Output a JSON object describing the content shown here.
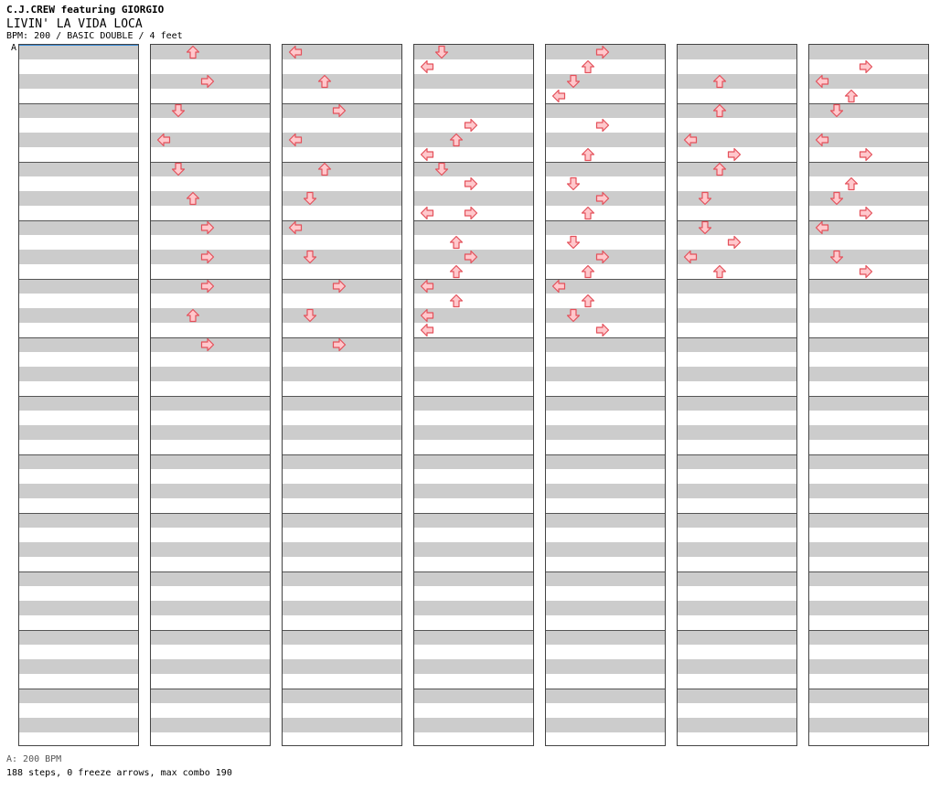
{
  "header": {
    "artist": "C.J.CREW featuring GIORGIO",
    "title": "LIVIN' LA VIDA LOCA",
    "info": "BPM: 200 / BASIC DOUBLE / 4 feet"
  },
  "bpm_marker": "A",
  "footer": {
    "bpm_legend": "A: 200 BPM",
    "stats": "188 steps, 0 freeze arrows, max combo 190"
  },
  "colors": {
    "arrow_fill": "#ffc8cc",
    "arrow_stroke": "#e4505a",
    "band": "#cccccc",
    "marker": "#3a8bd6"
  },
  "lanes": [
    "left",
    "down",
    "up",
    "right",
    "left",
    "down",
    "up",
    "right"
  ],
  "columns": [
    {
      "notes": []
    },
    {
      "notes": [
        {
          "row": 0,
          "lane": "up"
        },
        {
          "row": 2,
          "lane": "right"
        },
        {
          "row": 4,
          "lane": "down"
        },
        {
          "row": 6,
          "lane": "left"
        },
        {
          "row": 8,
          "lane": "down"
        },
        {
          "row": 10,
          "lane": "up"
        },
        {
          "row": 12,
          "lane": "right"
        },
        {
          "row": 14,
          "lane": "right"
        },
        {
          "row": 16,
          "lane": "right"
        },
        {
          "row": 18,
          "lane": "up"
        },
        {
          "row": 20,
          "lane": "right"
        }
      ]
    },
    {
      "notes": [
        {
          "row": 0,
          "lane": "left"
        },
        {
          "row": 2,
          "lane": "up"
        },
        {
          "row": 4,
          "lane": "right"
        },
        {
          "row": 6,
          "lane": "left"
        },
        {
          "row": 8,
          "lane": "up"
        },
        {
          "row": 10,
          "lane": "down"
        },
        {
          "row": 12,
          "lane": "left"
        },
        {
          "row": 14,
          "lane": "down"
        },
        {
          "row": 16,
          "lane": "right"
        },
        {
          "row": 18,
          "lane": "down"
        },
        {
          "row": 20,
          "lane": "right"
        }
      ]
    },
    {
      "notes": [
        {
          "row": 0,
          "lane": "down"
        },
        {
          "row": 1,
          "lane": "left"
        },
        {
          "row": 5,
          "lane": "right"
        },
        {
          "row": 6,
          "lane": "up"
        },
        {
          "row": 7,
          "lane": "left"
        },
        {
          "row": 8,
          "lane": "down"
        },
        {
          "row": 9,
          "lane": "right"
        },
        {
          "row": 11,
          "lane": "right"
        },
        {
          "row": 11,
          "lane": "left"
        },
        {
          "row": 13,
          "lane": "up"
        },
        {
          "row": 14,
          "lane": "right"
        },
        {
          "row": 15,
          "lane": "up"
        },
        {
          "row": 16,
          "lane": "left"
        },
        {
          "row": 17,
          "lane": "up"
        },
        {
          "row": 18,
          "lane": "left"
        },
        {
          "row": 19,
          "lane": "left"
        }
      ]
    },
    {
      "notes": [
        {
          "row": 0,
          "lane": "right"
        },
        {
          "row": 1,
          "lane": "up"
        },
        {
          "row": 2,
          "lane": "down"
        },
        {
          "row": 3,
          "lane": "left"
        },
        {
          "row": 5,
          "lane": "right"
        },
        {
          "row": 7,
          "lane": "up"
        },
        {
          "row": 9,
          "lane": "down"
        },
        {
          "row": 10,
          "lane": "right"
        },
        {
          "row": 11,
          "lane": "up"
        },
        {
          "row": 13,
          "lane": "down"
        },
        {
          "row": 14,
          "lane": "right"
        },
        {
          "row": 15,
          "lane": "up"
        },
        {
          "row": 16,
          "lane": "left"
        },
        {
          "row": 17,
          "lane": "up"
        },
        {
          "row": 18,
          "lane": "down"
        },
        {
          "row": 19,
          "lane": "right"
        }
      ]
    },
    {
      "notes": [
        {
          "row": 2,
          "lane": "up"
        },
        {
          "row": 4,
          "lane": "up"
        },
        {
          "row": 6,
          "lane": "left"
        },
        {
          "row": 7,
          "lane": "right"
        },
        {
          "row": 8,
          "lane": "up"
        },
        {
          "row": 10,
          "lane": "down"
        },
        {
          "row": 12,
          "lane": "down"
        },
        {
          "row": 13,
          "lane": "right"
        },
        {
          "row": 14,
          "lane": "left"
        },
        {
          "row": 15,
          "lane": "up"
        }
      ]
    },
    {
      "notes": [
        {
          "row": 1,
          "lane": "right"
        },
        {
          "row": 2,
          "lane": "left"
        },
        {
          "row": 3,
          "lane": "up"
        },
        {
          "row": 4,
          "lane": "down"
        },
        {
          "row": 6,
          "lane": "left"
        },
        {
          "row": 7,
          "lane": "right"
        },
        {
          "row": 9,
          "lane": "up"
        },
        {
          "row": 10,
          "lane": "down"
        },
        {
          "row": 11,
          "lane": "right"
        },
        {
          "row": 12,
          "lane": "left"
        },
        {
          "row": 14,
          "lane": "down"
        },
        {
          "row": 15,
          "lane": "right"
        }
      ]
    },
    {
      "notes": []
    }
  ]
}
